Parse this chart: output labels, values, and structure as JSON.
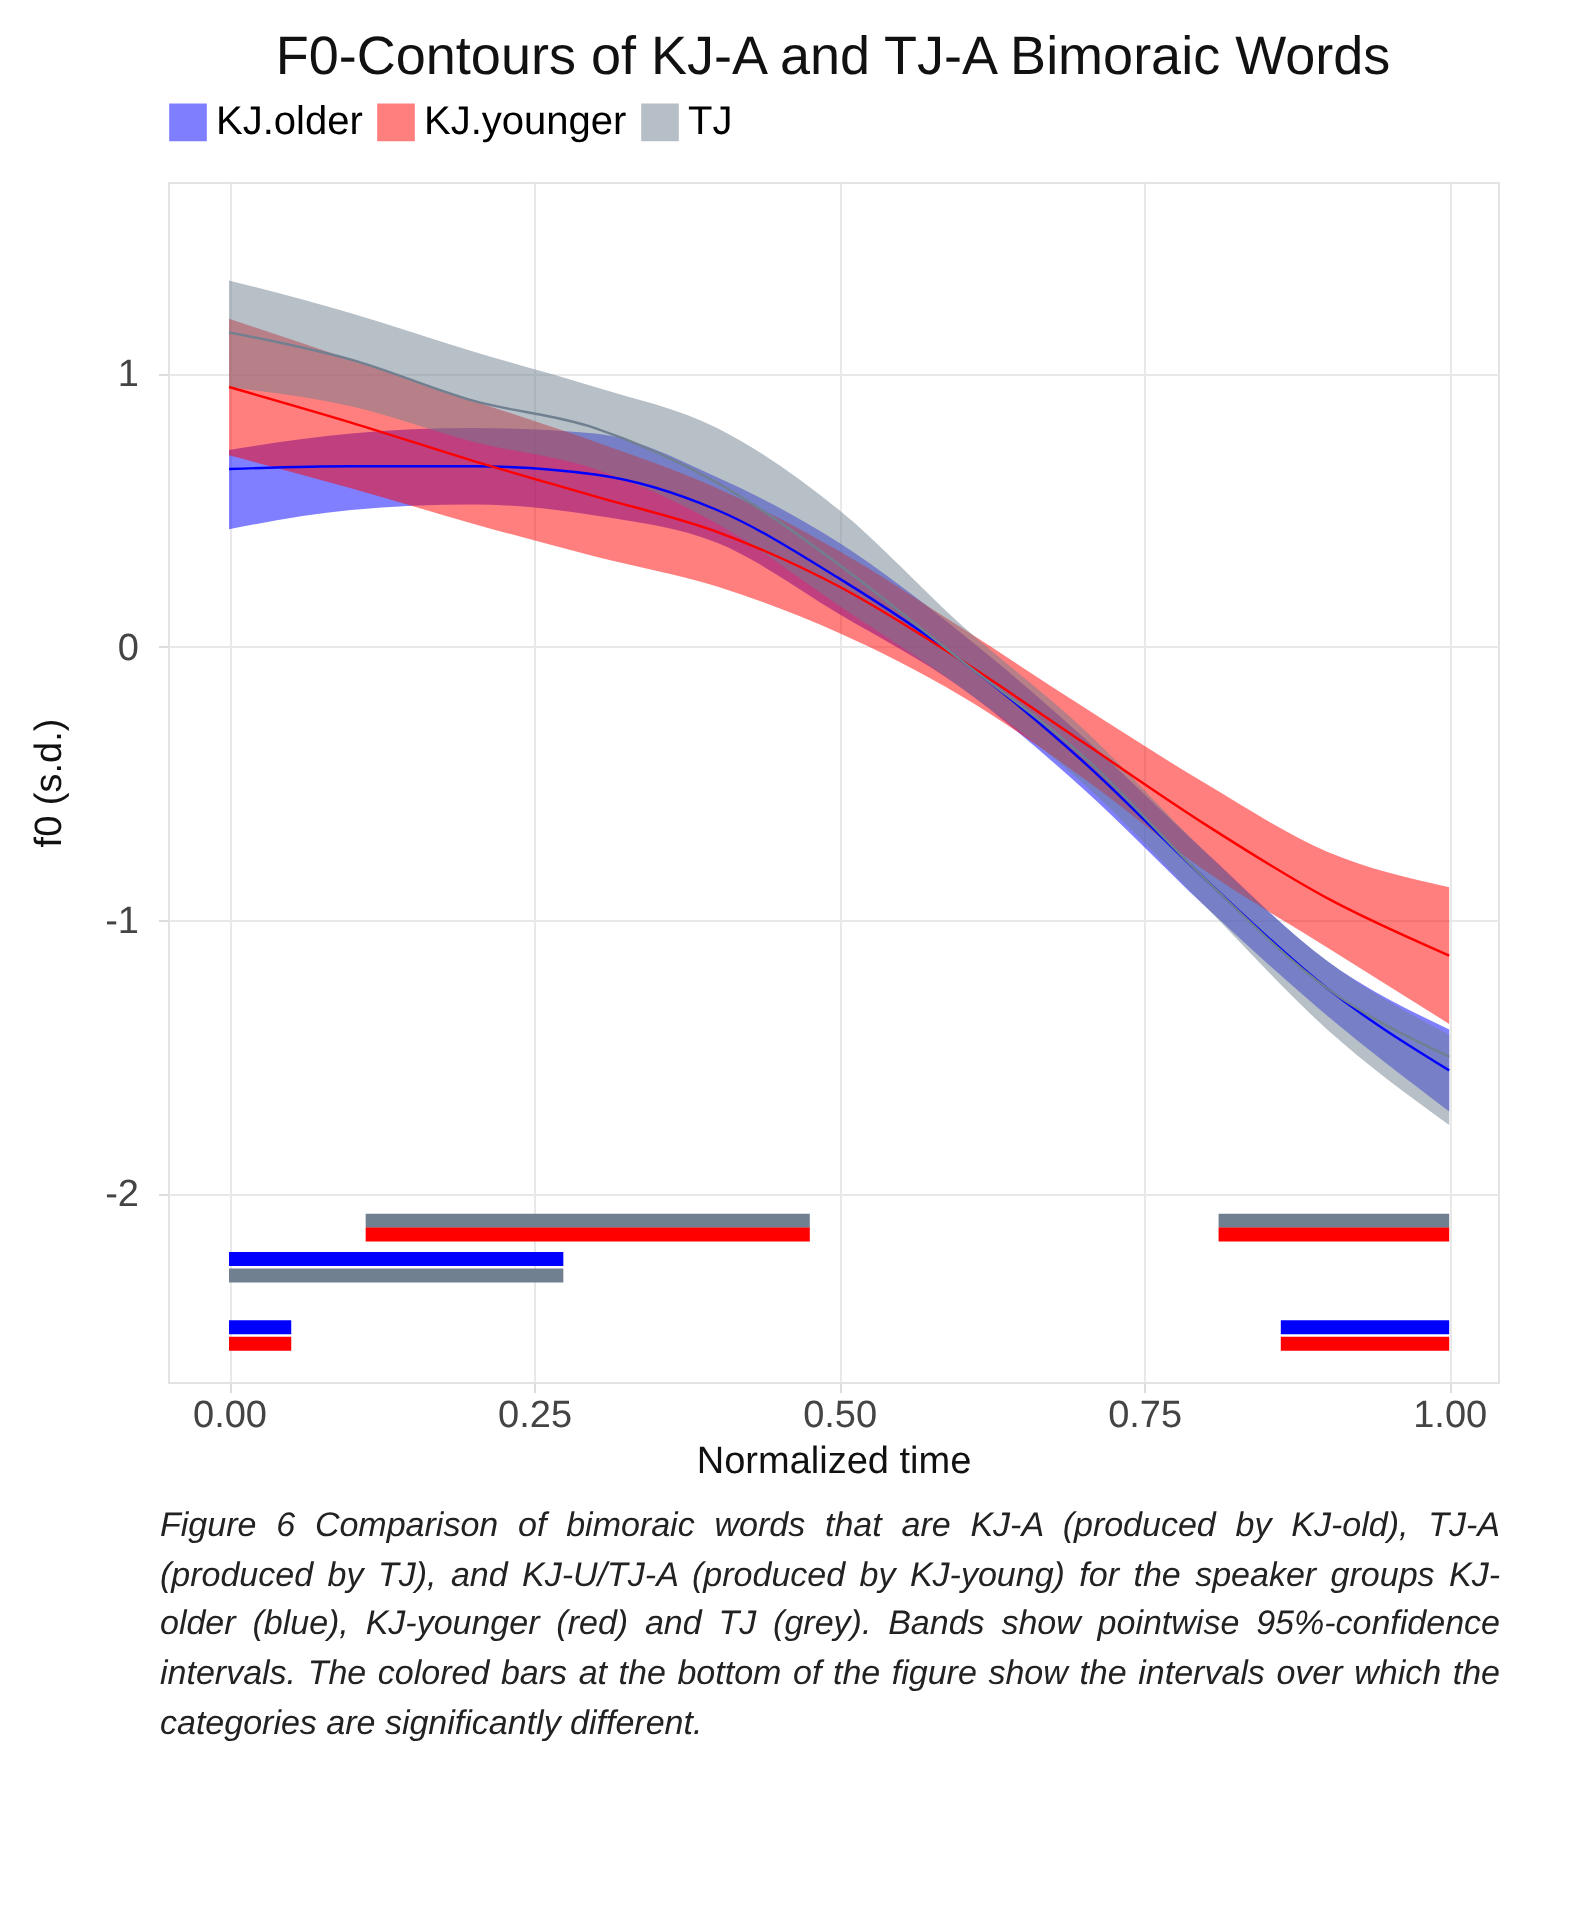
{
  "chart_data": {
    "type": "line",
    "title": "F0-Contours of KJ-A and TJ-A Bimoraic Words",
    "xlabel": "Normalized time",
    "ylabel": "f0 (s.d.)",
    "x": [
      0,
      0.1,
      0.2,
      0.3,
      0.4,
      0.5,
      0.6,
      0.7,
      0.8,
      0.9,
      1.0
    ],
    "series": [
      {
        "name": "KJ.older",
        "color": "#0000ff",
        "values": [
          0.65,
          0.66,
          0.66,
          0.63,
          0.5,
          0.25,
          -0.05,
          -0.42,
          -0.85,
          -1.25,
          -1.55
        ],
        "lower": [
          0.43,
          0.5,
          0.52,
          0.48,
          0.38,
          0.12,
          -0.15,
          -0.52,
          -0.95,
          -1.35,
          -1.7
        ],
        "upper": [
          0.72,
          0.78,
          0.8,
          0.78,
          0.62,
          0.38,
          0.05,
          -0.33,
          -0.75,
          -1.15,
          -1.4
        ]
      },
      {
        "name": "KJ.younger",
        "color": "#ff0000",
        "values": [
          0.95,
          0.82,
          0.68,
          0.55,
          0.42,
          0.22,
          -0.05,
          -0.35,
          -0.65,
          -0.92,
          -1.13
        ],
        "lower": [
          0.7,
          0.58,
          0.45,
          0.33,
          0.22,
          0.05,
          -0.18,
          -0.48,
          -0.82,
          -1.1,
          -1.38
        ],
        "upper": [
          1.2,
          1.05,
          0.9,
          0.75,
          0.58,
          0.35,
          0.07,
          -0.22,
          -0.5,
          -0.75,
          -0.88
        ]
      },
      {
        "name": "TJ",
        "color": "#708090",
        "values": [
          1.15,
          1.05,
          0.9,
          0.8,
          0.6,
          0.3,
          -0.05,
          -0.4,
          -0.85,
          -1.25,
          -1.5
        ],
        "lower": [
          0.95,
          0.88,
          0.75,
          0.65,
          0.45,
          0.15,
          -0.15,
          -0.5,
          -0.95,
          -1.4,
          -1.75
        ],
        "upper": [
          1.34,
          1.22,
          1.08,
          0.95,
          0.8,
          0.5,
          0.08,
          -0.3,
          -0.75,
          -1.15,
          -1.42
        ]
      },
      {
        "color": "#708090",
        "x": [
          0.112,
          0.476
        ],
        "values": [
          -2.1,
          -2.1
        ]
      },
      {
        "color": "#ff0000",
        "x": [
          0.112,
          0.476
        ],
        "values": [
          -2.15,
          -2.15
        ]
      },
      {
        "color": "#708090",
        "x": [
          0.811,
          1.0
        ],
        "values": [
          -2.1,
          -2.1
        ]
      },
      {
        "color": "#ff0000",
        "x": [
          0.811,
          1.0
        ],
        "values": [
          -2.15,
          -2.15
        ]
      },
      {
        "color": "#0000ff",
        "x": [
          0,
          0.274
        ],
        "values": [
          -2.24,
          -2.24
        ]
      },
      {
        "color": "#708090",
        "x": [
          0,
          0.274
        ],
        "values": [
          -2.3,
          -2.3
        ]
      },
      {
        "color": "#0000ff",
        "x": [
          0,
          0.051
        ],
        "values": [
          -2.49,
          -2.49
        ]
      },
      {
        "color": "#ff0000",
        "x": [
          0,
          0.051
        ],
        "values": [
          -2.55,
          -2.55
        ]
      },
      {
        "color": "#0000ff",
        "x": [
          0.862,
          1.0
        ],
        "values": [
          -2.49,
          -2.49
        ]
      },
      {
        "color": "#ff0000",
        "x": [
          0.862,
          1.0
        ],
        "values": [
          -2.55,
          -2.55
        ]
      }
    ],
    "xlim": [
      -0.05,
      1.04
    ],
    "ylim": [
      -2.69,
      1.7
    ],
    "xticks": [
      {
        "value": 0,
        "label": "0.00"
      },
      {
        "value": 0.25,
        "label": "0.25"
      },
      {
        "value": 0.5,
        "label": "0.50"
      },
      {
        "value": 0.75,
        "label": "0.75"
      },
      {
        "value": 1,
        "label": "1.00"
      }
    ],
    "yticks": [
      -2,
      -1,
      0,
      1
    ],
    "grid": true,
    "legend": "top",
    "marker": "none",
    "line_style": "solid",
    "annotations": [
      "Figure 6 Comparison of bimoraic words that are KJ-A (produced by KJ-old), TJ-A (produced by TJ), and KJ-U/TJ-A (produced by KJ-young) for the speaker groups KJ-older (blue), KJ-younger (red) and TJ (grey). Bands show pointwise 95%-confidence intervals. The colored bars at the bottom of the figure show the intervals over which the categories are significantly different."
    ]
  }
}
